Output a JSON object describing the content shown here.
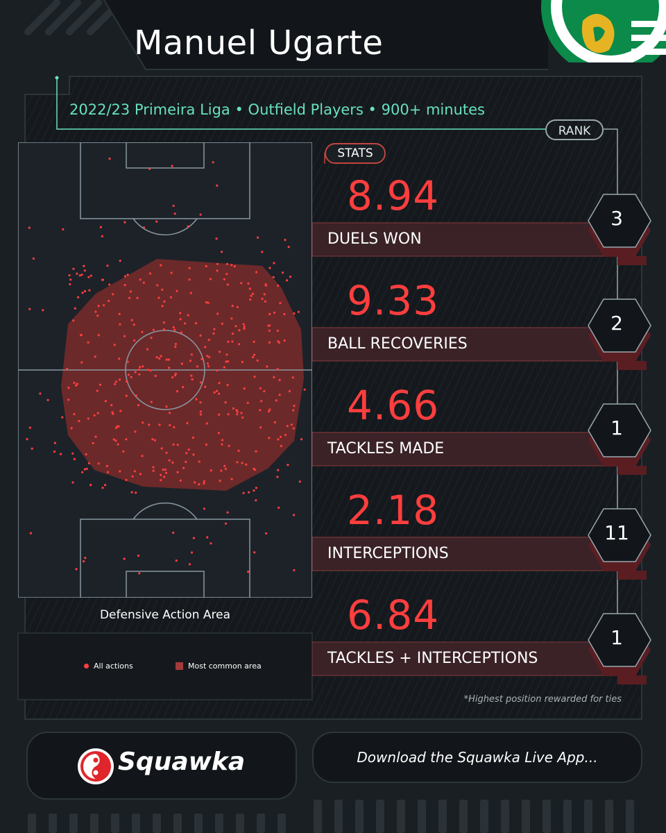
{
  "player": {
    "name": "Manuel Ugarte"
  },
  "header": {
    "subtitle": "2022/23 Primeira Liga • Outfield Players • 900+ minutes",
    "rank_label": "RANK",
    "stats_label": "STATS"
  },
  "pitch": {
    "caption": "Defensive Action Area",
    "legend": {
      "all_actions": "All actions",
      "most_common_area": "Most common area"
    }
  },
  "footnote": "*Highest position rewarded for ties",
  "footer": {
    "brand": "Squawka",
    "app_cta": "Download the Squawka Live App..."
  },
  "icons": {
    "brand_logo": "squawka-logo-icon",
    "club_badge": "sporting-badge-icon"
  },
  "colors": {
    "accent_red": "#ff3e3e",
    "teal": "#69e0c1",
    "area_fill": "#8a2f2f",
    "background": "#1a1f24",
    "panel": "#15191d"
  },
  "chart_data": {
    "type": "table",
    "columns": [
      "value",
      "stat",
      "rank"
    ],
    "rows": [
      {
        "value": "8.94",
        "stat": "DUELS WON",
        "rank": "3"
      },
      {
        "value": "9.33",
        "stat": "BALL RECOVERIES",
        "rank": "2"
      },
      {
        "value": "4.66",
        "stat": "TACKLES MADE",
        "rank": "1"
      },
      {
        "value": "2.18",
        "stat": "INTERCEPTIONS",
        "rank": "11"
      },
      {
        "value": "6.84",
        "stat": "TACKLES + INTERCEPTIONS",
        "rank": "1"
      }
    ]
  }
}
